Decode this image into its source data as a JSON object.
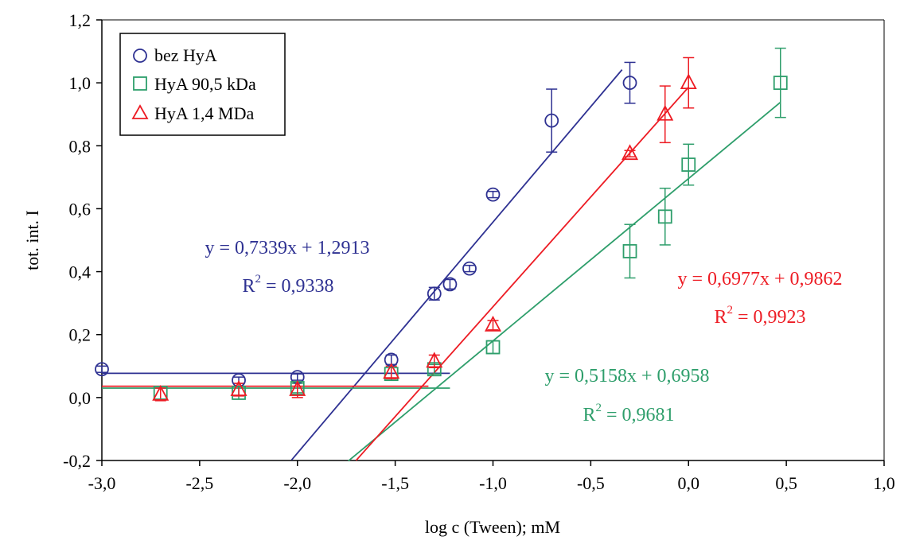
{
  "chart_data": {
    "type": "scatter",
    "title": "",
    "xlabel": "log c (Tween); mM",
    "ylabel": "tot. int. I",
    "xlim": [
      -3.0,
      1.0
    ],
    "ylim": [
      -0.2,
      1.2
    ],
    "xticks": [
      -3.0,
      -2.5,
      -2.0,
      -1.5,
      -1.0,
      -0.5,
      0.0,
      0.5,
      1.0
    ],
    "yticks": [
      -0.2,
      0.0,
      0.2,
      0.4,
      0.6,
      0.8,
      1.0,
      1.2
    ],
    "xtick_labels": [
      "-3,0",
      "-2,5",
      "-2,0",
      "-1,5",
      "-1,0",
      "-0,5",
      "0,0",
      "0,5",
      "1,0"
    ],
    "ytick_labels": [
      "-0,2",
      "0,0",
      "0,2",
      "0,4",
      "0,6",
      "0,8",
      "1,0",
      "1,2"
    ],
    "grid": false,
    "legend_position": "top-left",
    "series": [
      {
        "name": "bez HyA",
        "marker": "circle",
        "color": "#2E3192",
        "points": [
          {
            "x": -3.0,
            "y": 0.09,
            "err": 0.01
          },
          {
            "x": -2.3,
            "y": 0.055,
            "err": 0.01
          },
          {
            "x": -2.0,
            "y": 0.065,
            "err": 0.01
          },
          {
            "x": -1.52,
            "y": 0.12,
            "err": 0.015
          },
          {
            "x": -1.3,
            "y": 0.33,
            "err": 0.02
          },
          {
            "x": -1.22,
            "y": 0.36,
            "err": 0.015
          },
          {
            "x": -1.12,
            "y": 0.41,
            "err": 0.01
          },
          {
            "x": -1.0,
            "y": 0.645,
            "err": 0.01
          },
          {
            "x": -0.7,
            "y": 0.88,
            "err": 0.1
          },
          {
            "x": -0.3,
            "y": 1.0,
            "err": 0.065
          }
        ],
        "baseline": {
          "y": 0.077,
          "x_from": -3.0,
          "x_to": -1.22
        },
        "fit": {
          "slope": 0.7339,
          "intercept": 1.2913,
          "x_from": -2.03,
          "x_to": -0.34
        },
        "equation": "y = 0,7339x + 1,2913",
        "r2_label": "R",
        "r2_sup": "2",
        "r2_value": " = 0,9338"
      },
      {
        "name": "HyA 90,5 kDa",
        "marker": "square",
        "color": "#2E9E6B",
        "points": [
          {
            "x": -2.7,
            "y": 0.015,
            "err": 0.02
          },
          {
            "x": -2.3,
            "y": 0.015,
            "err": 0.02
          },
          {
            "x": -2.0,
            "y": 0.03,
            "err": 0.015
          },
          {
            "x": -1.52,
            "y": 0.075,
            "err": 0.02
          },
          {
            "x": -1.3,
            "y": 0.09,
            "err": 0.015
          },
          {
            "x": -1.0,
            "y": 0.16,
            "err": 0.02
          },
          {
            "x": -0.3,
            "y": 0.465,
            "err": 0.085
          },
          {
            "x": -0.12,
            "y": 0.575,
            "err": 0.09
          },
          {
            "x": 0.0,
            "y": 0.74,
            "err": 0.065
          },
          {
            "x": 0.47,
            "y": 1.0,
            "err": 0.11
          }
        ],
        "baseline": {
          "y": 0.03,
          "x_from": -3.0,
          "x_to": -1.22
        },
        "fit": {
          "slope": 0.5158,
          "intercept": 0.6958,
          "x_from": -1.74,
          "x_to": 0.47
        },
        "equation": "y = 0,5158x + 0,6958",
        "r2_label": "R",
        "r2_sup": "2",
        "r2_value": " = 0,9681"
      },
      {
        "name": "HyA 1,4 MDa",
        "marker": "triangle",
        "color": "#ED1C24",
        "points": [
          {
            "x": -2.7,
            "y": 0.01,
            "err": 0.02
          },
          {
            "x": -2.3,
            "y": 0.025,
            "err": 0.02
          },
          {
            "x": -2.0,
            "y": 0.025,
            "err": 0.025
          },
          {
            "x": -1.52,
            "y": 0.08,
            "err": 0.02
          },
          {
            "x": -1.3,
            "y": 0.115,
            "err": 0.02
          },
          {
            "x": -1.0,
            "y": 0.23,
            "err": 0.015
          },
          {
            "x": -0.3,
            "y": 0.775,
            "err": 0.01
          },
          {
            "x": -0.12,
            "y": 0.9,
            "err": 0.09
          },
          {
            "x": 0.0,
            "y": 1.0,
            "err": 0.08
          }
        ],
        "baseline": {
          "y": 0.036,
          "x_from": -3.0,
          "x_to": -1.33
        },
        "fit": {
          "slope": 0.6977,
          "intercept": 0.9862,
          "x_from": -1.7,
          "x_to": 0.0
        },
        "equation": "y = 0,6977x + 0,9862",
        "r2_label": "R",
        "r2_sup": "2",
        "r2_value": " = 0,9923"
      }
    ]
  }
}
